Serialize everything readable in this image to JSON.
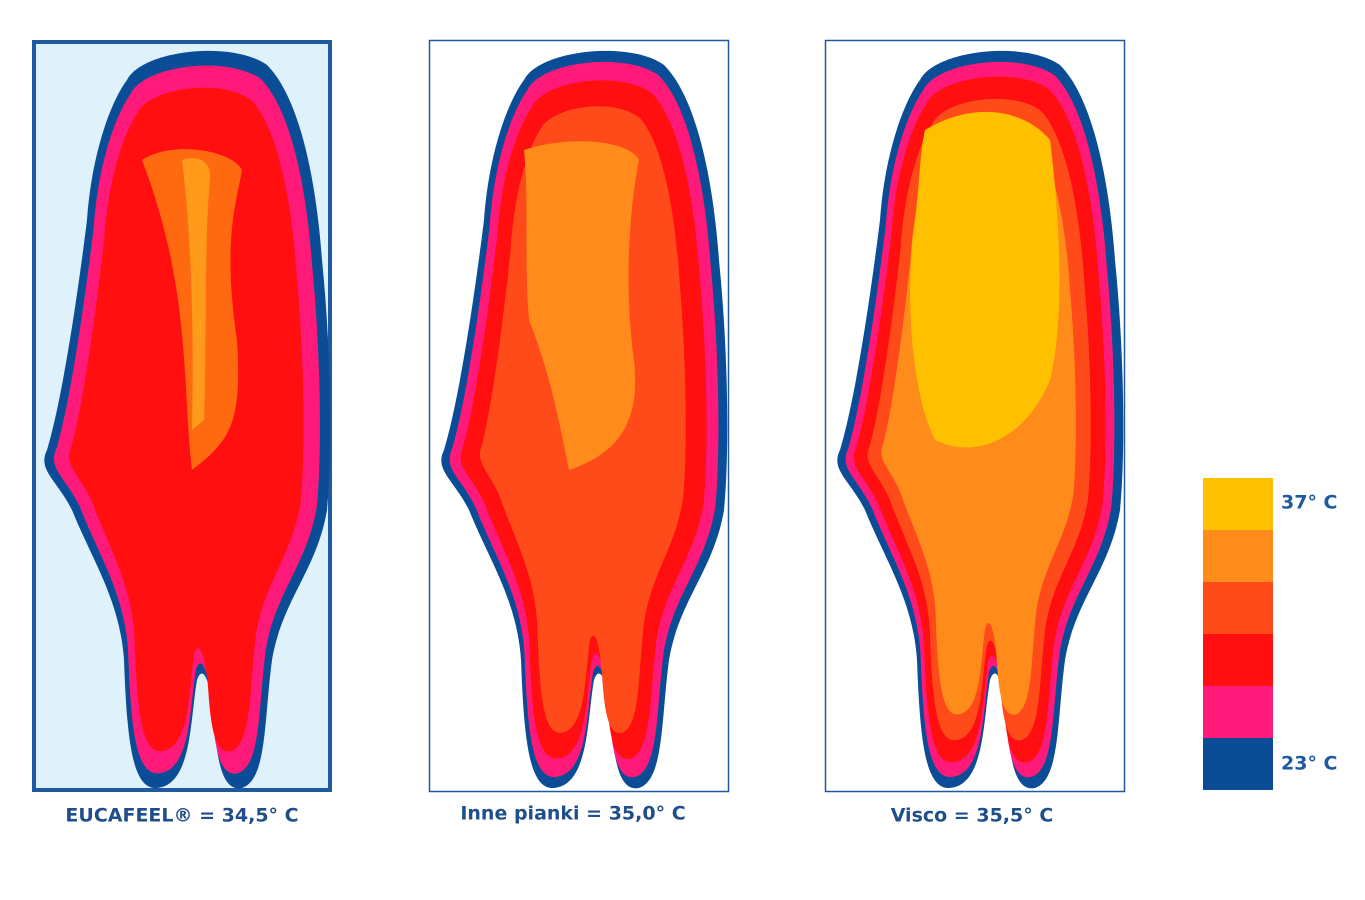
{
  "panels": [
    {
      "caption": "EUCAFEEL® = 34,5° C"
    },
    {
      "caption": "Inne pianki = 35,0° C"
    },
    {
      "caption": "Visco = 35,5° C"
    }
  ],
  "legend": {
    "top_label": "37° C",
    "bottom_label": "23° C"
  }
}
